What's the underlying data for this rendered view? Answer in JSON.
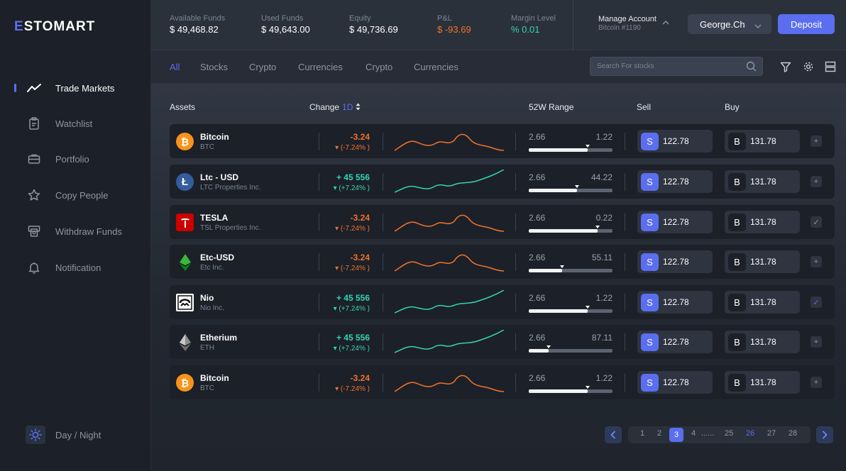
{
  "brand": {
    "name_a": "E",
    "name_b": "STOMART",
    "accent": "#5b6ef0"
  },
  "sidebar": {
    "items": [
      {
        "label": "Trade Markets",
        "icon": "trend-line-icon",
        "active": true
      },
      {
        "label": "Watchlist",
        "icon": "clipboard-icon"
      },
      {
        "label": "Portfolio",
        "icon": "briefcase-icon"
      },
      {
        "label": "Copy People",
        "icon": "star-icon"
      },
      {
        "label": "Withdraw Funds",
        "icon": "withdraw-icon"
      },
      {
        "label": "Notification",
        "icon": "bell-icon"
      }
    ],
    "daynight_label": "Day / Night"
  },
  "stats": [
    {
      "label": "Available Funds",
      "value": "$ 49,468.82"
    },
    {
      "label": "Used Funds",
      "value": "$ 49,643.00"
    },
    {
      "label": "Equity",
      "value": "$ 49,736.69"
    },
    {
      "label": "P&L",
      "value": "$ -93.69",
      "tone": "neg"
    },
    {
      "label": "Margin Level",
      "value": "% 0.01",
      "tone": "pos"
    }
  ],
  "account": {
    "label": "Manage Account",
    "sub": "Bitcoin #1190",
    "user": "George.Ch",
    "deposit": "Deposit"
  },
  "tabs": [
    "All",
    "Stocks",
    "Crypto",
    "Currencies",
    "Crypto",
    "Currencies"
  ],
  "search": {
    "placeholder": "Search For stocks"
  },
  "table": {
    "headers": {
      "assets": "Assets",
      "change": "Change",
      "timeframe": "1D",
      "range": "52W Range",
      "sell": "Sell",
      "buy": "Buy"
    },
    "rows": [
      {
        "name": "Bitcoin",
        "sub": "BTC",
        "logo": "bitcoin-logo",
        "change": "-3.24",
        "pct": "▾ (-7.24% )",
        "dir": "down",
        "lo": "2.66",
        "hi": "1.22",
        "pos": 0.7,
        "sell": "122.78",
        "buy": "131.78",
        "sell_letter": "S",
        "buy_letter": "B",
        "action": "+"
      },
      {
        "name": "Ltc - USD",
        "sub": "LTC Properties Inc.",
        "logo": "litecoin-logo",
        "change": "+ 45 556",
        "pct": "▾ (+7.24% )",
        "dir": "up",
        "lo": "2.66",
        "hi": "44.22",
        "pos": 0.58,
        "sell": "122.78",
        "buy": "131.78",
        "sell_letter": "S",
        "buy_letter": "B",
        "action": "+"
      },
      {
        "name": "TESLA",
        "sub": "TSL Properties Inc.",
        "logo": "tesla-logo",
        "change": "-3.24",
        "pct": "▾ (-7.24% )",
        "dir": "down",
        "lo": "2.66",
        "hi": "0.22",
        "pos": 0.82,
        "sell": "122.78",
        "buy": "131.78",
        "sell_letter": "S",
        "buy_letter": "B",
        "action": "✓"
      },
      {
        "name": "Etc-USD",
        "sub": "Etc Inc.",
        "logo": "ethereum-classic-logo",
        "change": "-3.24",
        "pct": "▾ (-7.24% )",
        "dir": "down",
        "lo": "2.66",
        "hi": "55.11",
        "pos": 0.4,
        "sell": "122.78",
        "buy": "131.78",
        "sell_letter": "S",
        "buy_letter": "B",
        "action": "+"
      },
      {
        "name": "Nio",
        "sub": "Nio Inc.",
        "logo": "nio-logo",
        "change": "+ 45 556",
        "pct": "▾ (+7.24% )",
        "dir": "up",
        "lo": "2.66",
        "hi": "1.22",
        "pos": 0.7,
        "sell": "122.78",
        "buy": "131.78",
        "sell_letter": "S",
        "buy_letter": "B",
        "action": "✓"
      },
      {
        "name": "Etherium",
        "sub": "ETH",
        "logo": "ethereum-logo",
        "change": "+ 45 556",
        "pct": "▾ (+7.24% )",
        "dir": "up",
        "lo": "2.66",
        "hi": "87.11",
        "pos": 0.24,
        "sell": "122.78",
        "buy": "131.78",
        "sell_letter": "S",
        "buy_letter": "B",
        "action": "+"
      },
      {
        "name": "Bitcoin",
        "sub": "BTC",
        "logo": "bitcoin-logo",
        "change": "-3.24",
        "pct": "▾ (-7.24% )",
        "dir": "down",
        "lo": "2.66",
        "hi": "1.22",
        "pos": 0.7,
        "sell": "122.78",
        "buy": "131.78",
        "sell_letter": "S",
        "buy_letter": "B",
        "action": "+"
      }
    ]
  },
  "pagination": {
    "pages": [
      "1",
      "2",
      "3",
      "4",
      "......",
      "25",
      "26",
      "27",
      "28"
    ],
    "current": "3",
    "highlight": "26"
  },
  "colors": {
    "negative": "#f0732b",
    "positive": "#34d3b4",
    "bitcoin": "#f7931a",
    "litecoin": "#345d9d",
    "tesla": "#cc0000"
  }
}
